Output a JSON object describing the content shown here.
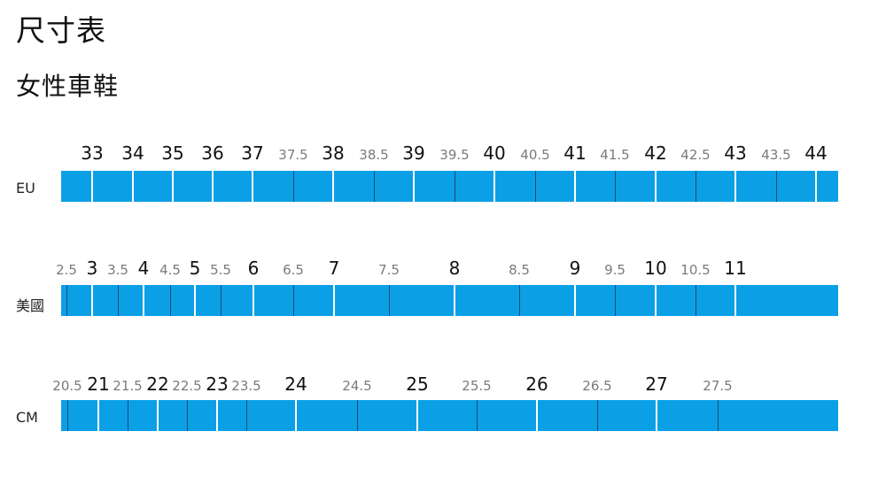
{
  "page_title": "尺寸表",
  "section_title": "女性車鞋",
  "rows": [
    {
      "label": "EU",
      "sizes": [
        {
          "v": "33",
          "major": true
        },
        {
          "v": "34",
          "major": true
        },
        {
          "v": "35",
          "major": true
        },
        {
          "v": "36",
          "major": true
        },
        {
          "v": "37",
          "major": true
        },
        {
          "v": "37.5",
          "major": false
        },
        {
          "v": "38",
          "major": true
        },
        {
          "v": "38.5",
          "major": false
        },
        {
          "v": "39",
          "major": true
        },
        {
          "v": "39.5",
          "major": false
        },
        {
          "v": "40",
          "major": true
        },
        {
          "v": "40.5",
          "major": false
        },
        {
          "v": "41",
          "major": true
        },
        {
          "v": "41.5",
          "major": false
        },
        {
          "v": "42",
          "major": true
        },
        {
          "v": "42.5",
          "major": false
        },
        {
          "v": "43",
          "major": true
        },
        {
          "v": "43.5",
          "major": false
        },
        {
          "v": "44",
          "major": true
        }
      ]
    },
    {
      "label": "美國",
      "sizes": [
        {
          "v": "2.5",
          "major": false
        },
        {
          "v": "3",
          "major": true
        },
        {
          "v": "3.5",
          "major": false
        },
        {
          "v": "4",
          "major": true
        },
        {
          "v": "4.5",
          "major": false
        },
        {
          "v": "5",
          "major": true
        },
        {
          "v": "5.5",
          "major": false
        },
        {
          "v": "6",
          "major": true
        },
        {
          "v": "6.5",
          "major": false
        },
        {
          "v": "7",
          "major": true
        },
        {
          "v": "7.5",
          "major": false
        },
        {
          "v": "8",
          "major": true
        },
        {
          "v": "8.5",
          "major": false
        },
        {
          "v": "9",
          "major": true
        },
        {
          "v": "9.5",
          "major": false
        },
        {
          "v": "10",
          "major": true
        },
        {
          "v": "10.5",
          "major": false
        },
        {
          "v": "11",
          "major": true
        }
      ]
    },
    {
      "label": "CM",
      "sizes": [
        {
          "v": "20.5",
          "major": false
        },
        {
          "v": "21",
          "major": true
        },
        {
          "v": "21.5",
          "major": false
        },
        {
          "v": "22",
          "major": true
        },
        {
          "v": "22.5",
          "major": false
        },
        {
          "v": "23",
          "major": true
        },
        {
          "v": "23.5",
          "major": false
        },
        {
          "v": "24",
          "major": true
        },
        {
          "v": "24.5",
          "major": false
        },
        {
          "v": "25",
          "major": true
        },
        {
          "v": "25.5",
          "major": false
        },
        {
          "v": "26",
          "major": true
        },
        {
          "v": "26.5",
          "major": false
        },
        {
          "v": "27",
          "major": true
        },
        {
          "v": "27.5",
          "major": false
        }
      ]
    }
  ],
  "colors": {
    "bar": "#0ba0e6",
    "major_tick": "#ffffff",
    "minor_tick": "#1b4a78"
  }
}
